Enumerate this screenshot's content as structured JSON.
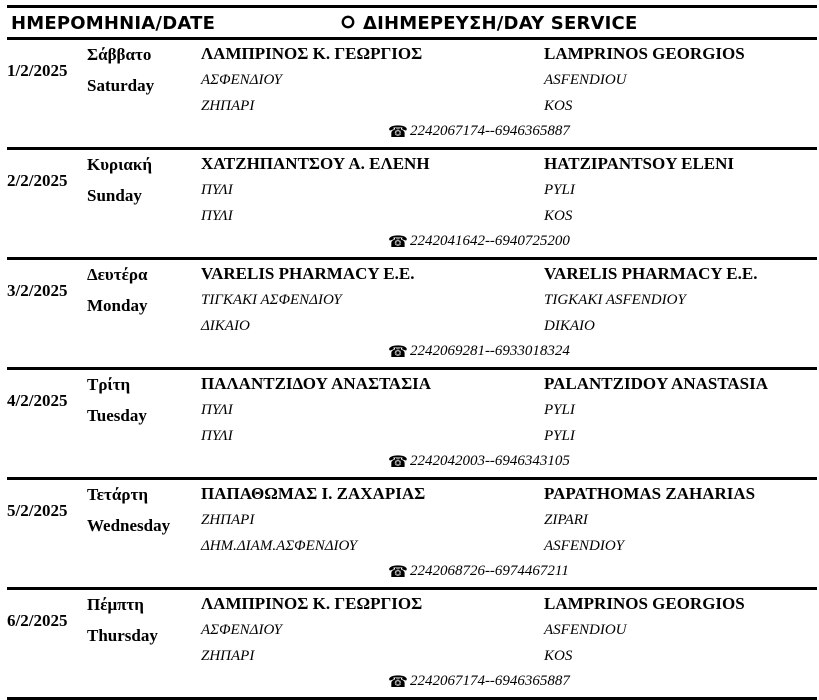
{
  "header": {
    "date_label": "ΗΜΕΡΟΜΗΝΙΑ/DATE",
    "service_label": "ΔΙΗΜΕΡΕΥΣΗ/DAY SERVICE",
    "icon": "sun-outline-icon"
  },
  "rows": [
    {
      "date": "1/2/2025",
      "day_gr": "Σάββατο",
      "day_en": "Saturday",
      "name_gr": "ΛΑΜΠΡΙΝΟΣ Κ. ΓΕΩΡΓΙΟΣ",
      "name_en": "LAMPRINOS GEORGIOS",
      "addr1_gr": "ΑΣΦΕΝΔΙΟΥ",
      "addr2_gr": "ΖΗΠΑΡΙ",
      "addr1_en": "ASFENDIOU",
      "addr2_en": "KOS",
      "phone": "2242067174--6946365887"
    },
    {
      "date": "2/2/2025",
      "day_gr": "Κυριακή",
      "day_en": "Sunday",
      "name_gr": "ΧΑΤΖΗΠΑΝΤΣΟΥ Α. ΕΛΕΝΗ",
      "name_en": "HATZIPANTSOY ELENI",
      "addr1_gr": "ΠΥΛΙ",
      "addr2_gr": "ΠΥΛΙ",
      "addr1_en": "PYLI",
      "addr2_en": "KOS",
      "phone": "2242041642--6940725200"
    },
    {
      "date": "3/2/2025",
      "day_gr": "Δευτέρα",
      "day_en": "Monday",
      "name_gr": "VARELIS PHARMACY E.E.",
      "name_en": "VARELIS PHARMACY E.E.",
      "addr1_gr": "ΤΙΓΚΑΚΙ ΑΣΦΕΝΔΙΟΥ",
      "addr2_gr": "ΔΙΚΑΙΟ",
      "addr1_en": "TIGKAKI ASFENDIOY",
      "addr2_en": "DIKAIO",
      "phone": "2242069281--6933018324"
    },
    {
      "date": "4/2/2025",
      "day_gr": "Τρίτη",
      "day_en": "Tuesday",
      "name_gr": "ΠΑΛΑΝΤΖΙΔΟΥ ΑΝΑΣΤΑΣΙΑ",
      "name_en": "PALANTZIDOY ANASTASIA",
      "addr1_gr": "ΠΥΛΙ",
      "addr2_gr": "ΠΥΛΙ",
      "addr1_en": "PYLI",
      "addr2_en": "PYLI",
      "phone": "2242042003--6946343105"
    },
    {
      "date": "5/2/2025",
      "day_gr": "Τετάρτη",
      "day_en": "Wednesday",
      "name_gr": "ΠΑΠΑΘΩΜΑΣ Ι. ΖΑΧΑΡΙΑΣ",
      "name_en": "PAPATHOMAS ZAHARIAS",
      "addr1_gr": "ΖΗΠΑΡΙ",
      "addr2_gr": "ΔΗΜ.ΔΙΑΜ.ΑΣΦΕΝΔΙΟΥ",
      "addr1_en": "ZIPARI",
      "addr2_en": "ASFENDIOY",
      "phone": "2242068726--6974467211"
    },
    {
      "date": "6/2/2025",
      "day_gr": "Πέμπτη",
      "day_en": "Thursday",
      "name_gr": "ΛΑΜΠΡΙΝΟΣ Κ. ΓΕΩΡΓΙΟΣ",
      "name_en": "LAMPRINOS GEORGIOS",
      "addr1_gr": "ΑΣΦΕΝΔΙΟΥ",
      "addr2_gr": "ΖΗΠΑΡΙ",
      "addr1_en": "ASFENDIOU",
      "addr2_en": "KOS",
      "phone": "2242067174--6946365887"
    }
  ]
}
